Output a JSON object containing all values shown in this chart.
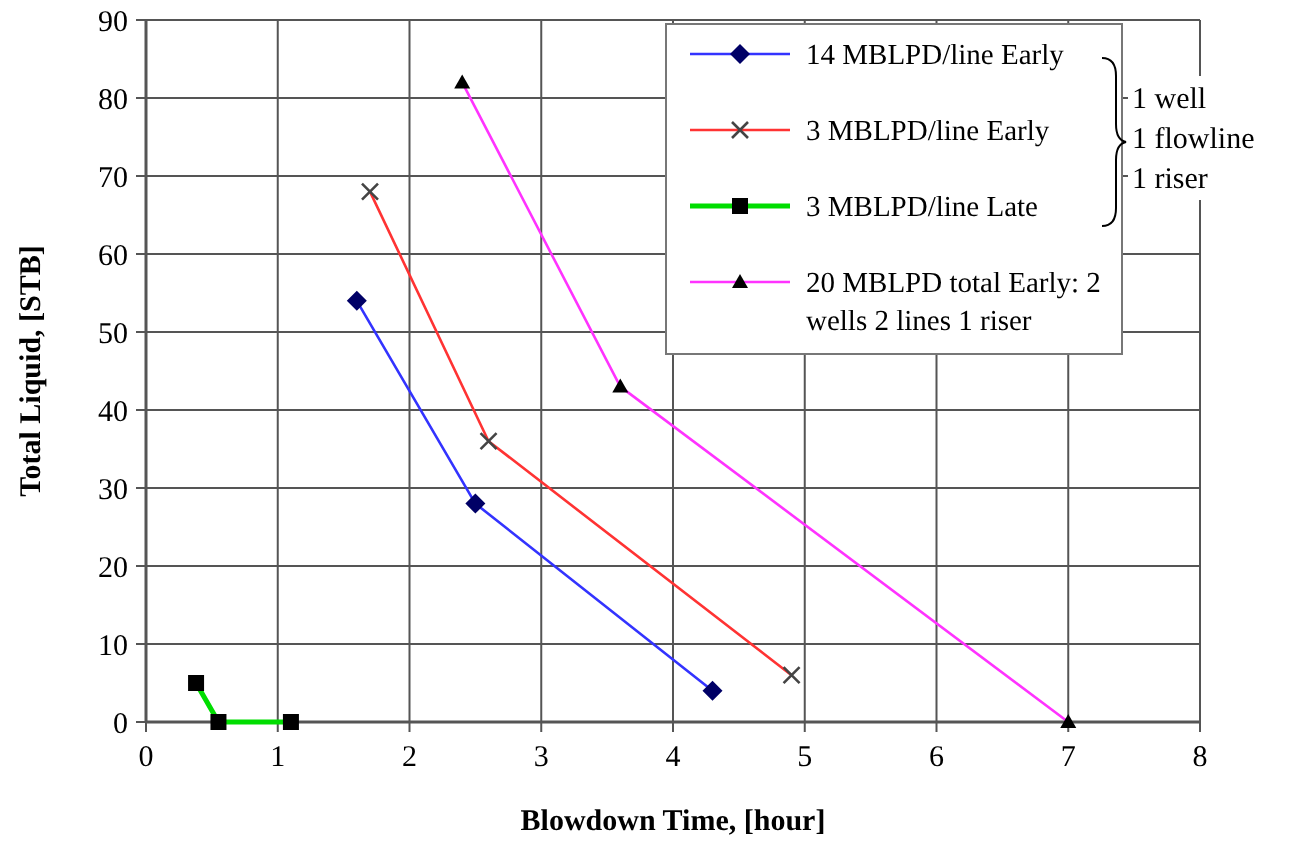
{
  "chart_data": {
    "type": "line",
    "xlabel": "Blowdown Time, [hour]",
    "ylabel": "Total Liquid, [STB]",
    "xlim": [
      0,
      8
    ],
    "xticks": [
      0,
      1,
      2,
      3,
      4,
      5,
      6,
      7,
      8
    ],
    "ylim": [
      0,
      90
    ],
    "yticks": [
      0,
      10,
      20,
      30,
      40,
      50,
      60,
      70,
      80,
      90
    ],
    "grid": true,
    "legend": "top right",
    "line_style": "solid",
    "annotations": [
      "1 well\n1 flowline\n1 riser"
    ],
    "series": [
      {
        "name": "14 MBLPD/line Early",
        "color": "#3333ff",
        "marker": "diamond",
        "x": [
          1.6,
          2.5,
          4.3
        ],
        "values": [
          54,
          28,
          4
        ]
      },
      {
        "name": "3 MBLPD/line Early",
        "color": "#ff3333",
        "marker": "cross",
        "x": [
          1.7,
          2.6,
          4.9
        ],
        "values": [
          68,
          36,
          6
        ]
      },
      {
        "name": "3 MBLPD/line Late",
        "color": "#00dd00",
        "marker": "square",
        "x": [
          0.38,
          0.55,
          1.1
        ],
        "values": [
          5,
          0,
          0
        ]
      },
      {
        "name": "20 MBLPD total Early: 2 wells 2 lines 1 riser",
        "color": "#ff33ff",
        "marker": "triangle",
        "x": [
          2.4,
          3.6,
          7
        ],
        "values": [
          82,
          43,
          0
        ]
      }
    ]
  }
}
